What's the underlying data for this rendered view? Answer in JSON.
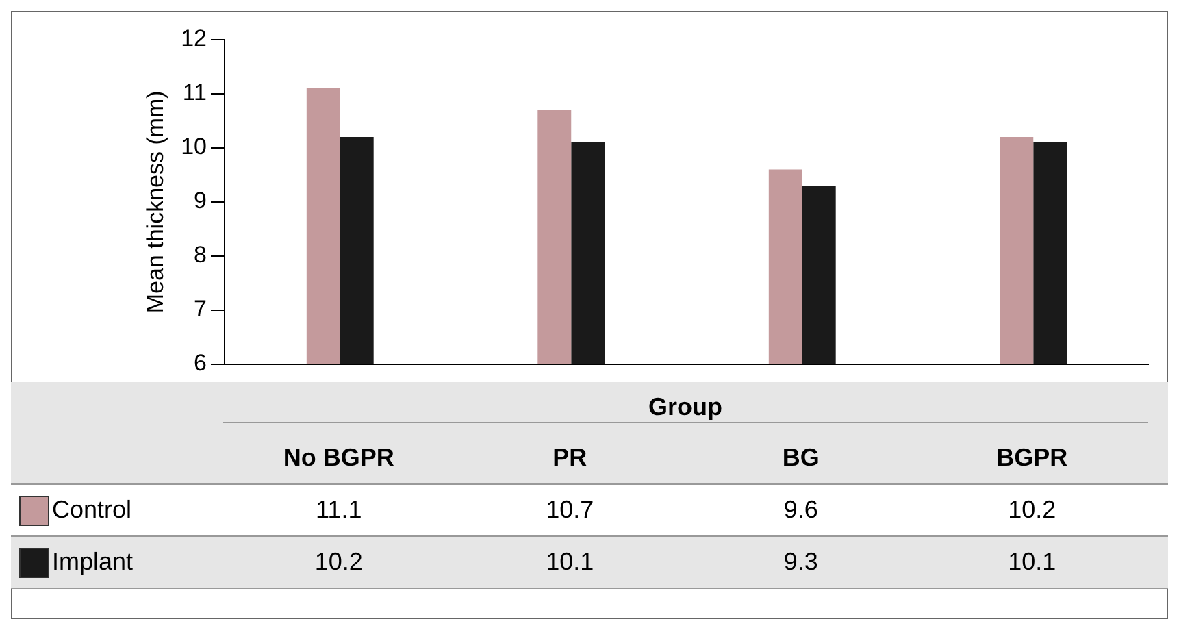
{
  "chart_data": {
    "type": "bar",
    "ylabel": "Mean thickness (mm)",
    "xlabel": "Group",
    "categories": [
      "No BGPR",
      "PR",
      "BG",
      "BGPR"
    ],
    "series": [
      {
        "name": "Control",
        "color": "#c49a9c",
        "values": [
          11.1,
          10.7,
          9.6,
          10.2
        ]
      },
      {
        "name": "Implant",
        "color": "#1a1a1a",
        "values": [
          10.2,
          10.1,
          9.3,
          10.1
        ]
      }
    ],
    "ylim": [
      6,
      12
    ],
    "yticks": [
      6,
      7,
      8,
      9,
      10,
      11,
      12
    ],
    "grid": false,
    "legend": "bottom",
    "data_labels": true
  }
}
